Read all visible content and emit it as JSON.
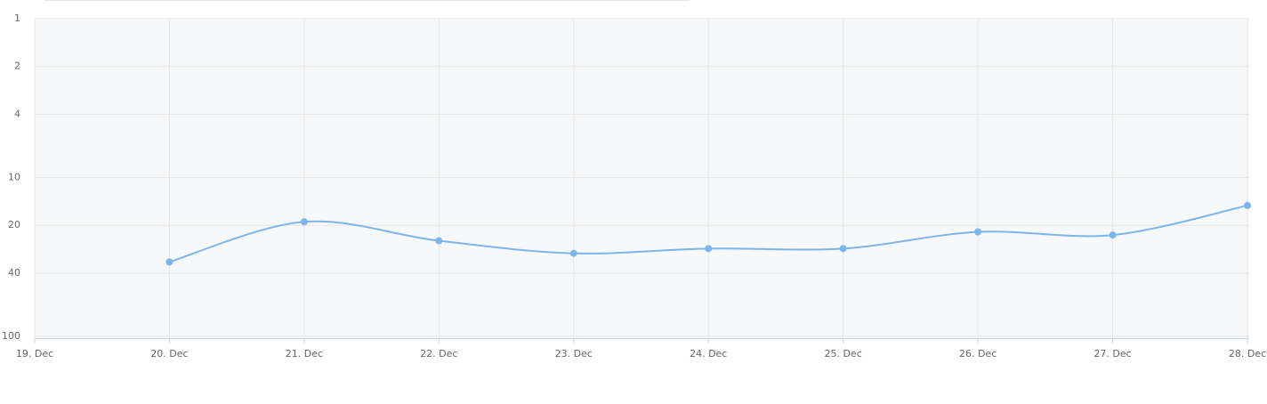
{
  "chart_data": {
    "type": "line",
    "categories": [
      "19. Dec",
      "20. Dec",
      "21. Dec",
      "22. Dec",
      "23. Dec",
      "24. Dec",
      "25. Dec",
      "26. Dec",
      "27. Dec",
      "28. Dec"
    ],
    "series": [
      {
        "color": "#7cb5ec",
        "values": [
          null,
          34,
          19,
          25,
          30,
          28,
          28,
          22,
          23,
          15
        ]
      }
    ],
    "ylim": [
      1,
      100
    ],
    "yticks": [
      1,
      2,
      4,
      10,
      20,
      40,
      100
    ],
    "log_scale": true,
    "reversed": true,
    "grid": true
  }
}
